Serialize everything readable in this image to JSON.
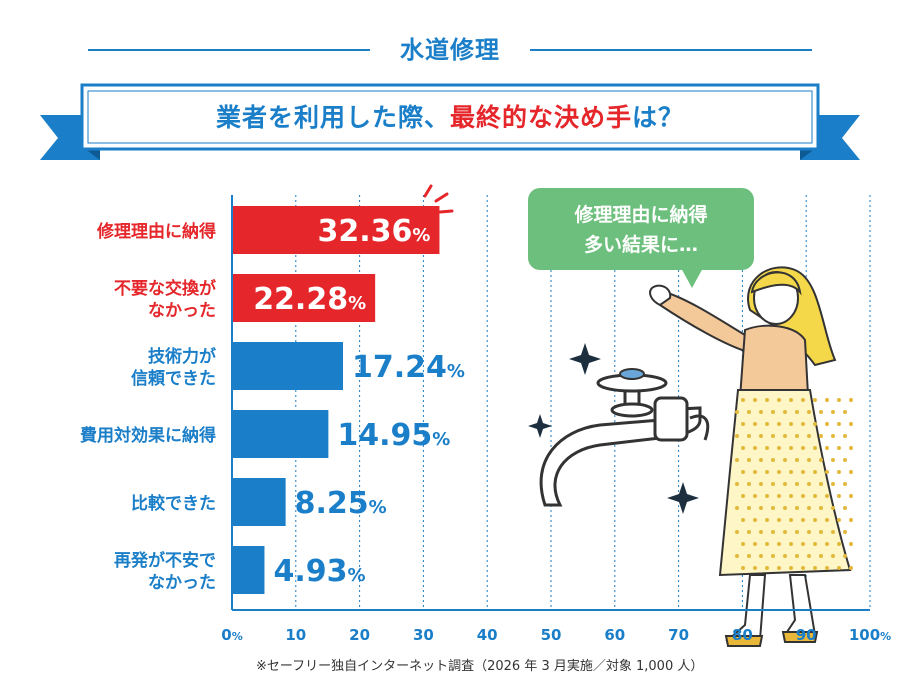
{
  "category_title": "水道修理",
  "headline": {
    "part1": "業者を利用した際、",
    "part2": "最終的な決め手",
    "part3": "は？"
  },
  "speech_bubble": {
    "line1": "修理理由に納得",
    "line2": "多い結果に…"
  },
  "footnote": "※セーフリー独自インターネット調査（2026 年 3 月実施／対象 1,000 人）",
  "colors": {
    "primary_blue": "#1a7ec8",
    "highlight_red": "#e5262a",
    "bubble_green": "#6cbf7c"
  },
  "chart_data": {
    "type": "bar",
    "orientation": "horizontal",
    "categories": [
      [
        "修理理由に納得"
      ],
      [
        "不要な交換が",
        "なかった"
      ],
      [
        "技術力が",
        "信頼できた"
      ],
      [
        "費用対効果に納得"
      ],
      [
        "比較できた"
      ],
      [
        "再発が不安で",
        "なかった"
      ]
    ],
    "values": [
      32.36,
      22.28,
      17.24,
      14.95,
      8.25,
      4.93
    ],
    "value_unit": "%",
    "bar_colors": [
      "#e5262a",
      "#e5262a",
      "#1a7ec8",
      "#1a7ec8",
      "#1a7ec8",
      "#1a7ec8"
    ],
    "x_range": [
      0,
      100
    ],
    "x_ticks": [
      0,
      10,
      20,
      30,
      40,
      50,
      60,
      70,
      80,
      90,
      100
    ],
    "x_tick_unit": "%",
    "grid": "vertical dashed"
  }
}
